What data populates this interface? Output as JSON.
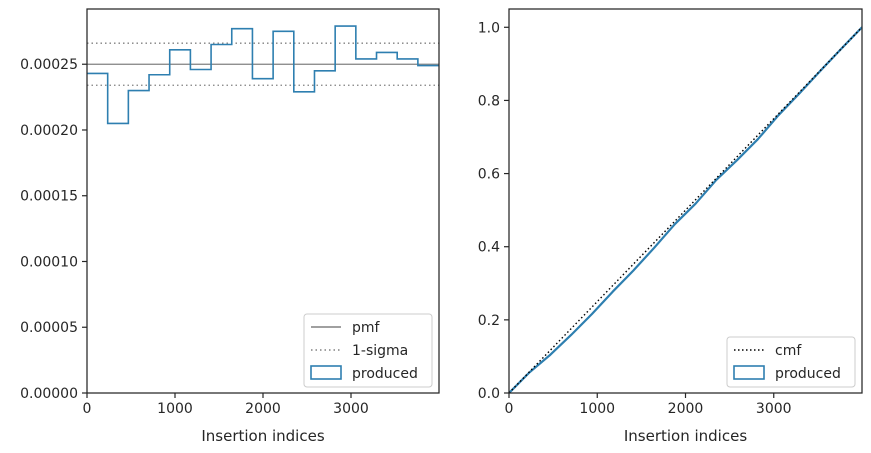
{
  "chart_data": [
    {
      "type": "histogram",
      "xlabel": "Insertion indices",
      "ylabel": "",
      "xlim": [
        0,
        4000
      ],
      "ylim": [
        0,
        0.000292
      ],
      "xticks": [
        0,
        1000,
        2000,
        3000
      ],
      "xtick_labels": [
        "0",
        "1000",
        "2000",
        "3000"
      ],
      "yticks": [
        0,
        5e-05,
        0.0001,
        0.00015,
        0.0002,
        0.00025
      ],
      "ytick_labels": [
        "0.00000",
        "0.00005",
        "0.00010",
        "0.00015",
        "0.00020",
        "0.00025"
      ],
      "grid": false,
      "legend_position": "lower-right",
      "legend": [
        "pmf",
        "1-sigma",
        "produced"
      ],
      "bin_edges": [
        0,
        235,
        470,
        705,
        940,
        1175,
        1410,
        1645,
        1880,
        2115,
        2350,
        2585,
        2820,
        3055,
        3290,
        3525,
        3760,
        4000
      ],
      "produced": [
        0.000243,
        0.000205,
        0.00023,
        0.000242,
        0.000261,
        0.000246,
        0.000265,
        0.000277,
        0.000239,
        0.000275,
        0.000229,
        0.000245,
        0.000279,
        0.000254,
        0.000259,
        0.000254,
        0.000249
      ],
      "pmf": 0.00025,
      "sigma_upper": 0.000266,
      "sigma_lower": 0.000234,
      "colors": {
        "produced": "#2e7fb0",
        "pmf": "#808080",
        "sigma": "#808080"
      }
    },
    {
      "type": "line",
      "xlabel": "Insertion indices",
      "ylabel": "",
      "xlim": [
        0,
        4000
      ],
      "ylim": [
        0,
        1.05
      ],
      "xticks": [
        0,
        1000,
        2000,
        3000
      ],
      "xtick_labels": [
        "0",
        "1000",
        "2000",
        "3000"
      ],
      "yticks": [
        0,
        0.2,
        0.4,
        0.6,
        0.8,
        1.0
      ],
      "ytick_labels": [
        "0.0",
        "0.2",
        "0.4",
        "0.6",
        "0.8",
        "1.0"
      ],
      "grid": false,
      "legend_position": "lower-right",
      "legend": [
        "cmf",
        "produced"
      ],
      "cmf": {
        "x": [
          0,
          4000
        ],
        "y": [
          0,
          1.0
        ]
      },
      "produced": {
        "x": [
          0,
          235,
          470,
          705,
          940,
          1175,
          1410,
          1645,
          1880,
          2115,
          2350,
          2585,
          2820,
          3055,
          3290,
          3525,
          3760,
          4000
        ],
        "y": [
          0,
          0.057,
          0.105,
          0.159,
          0.216,
          0.277,
          0.335,
          0.397,
          0.462,
          0.518,
          0.583,
          0.637,
          0.694,
          0.76,
          0.819,
          0.88,
          0.94,
          1.0
        ]
      },
      "colors": {
        "produced": "#2e7fb0",
        "cmf": "#000000"
      }
    }
  ]
}
